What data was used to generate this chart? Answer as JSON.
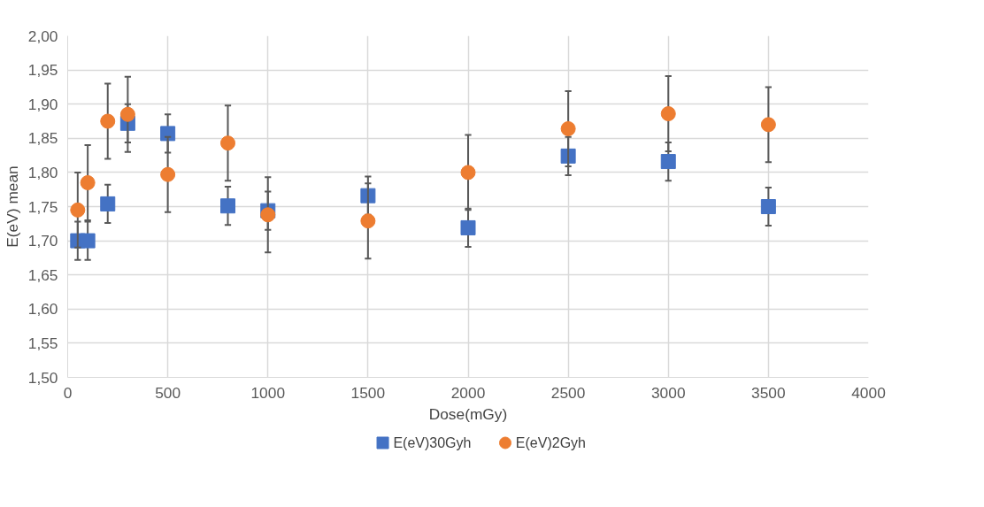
{
  "chart_data": {
    "type": "scatter",
    "xlabel": "Dose(mGy)",
    "ylabel": "E(eV) mean",
    "x": [
      50,
      100,
      200,
      300,
      500,
      800,
      1000,
      1500,
      2000,
      2500,
      3000,
      3500
    ],
    "series": [
      {
        "name": "E(eV)30Gyh",
        "color": "#4472c4",
        "marker": "square",
        "values": [
          1.7,
          1.7,
          1.754,
          1.872,
          1.857,
          1.751,
          1.744,
          1.766,
          1.719,
          1.824,
          1.816,
          1.75
        ],
        "errors": [
          0.028,
          0.028,
          0.028,
          0.028,
          0.028,
          0.028,
          0.028,
          0.028,
          0.028,
          0.028,
          0.028,
          0.028
        ]
      },
      {
        "name": "E(eV)2Gyh",
        "color": "#ed7d31",
        "marker": "circle",
        "values": [
          1.745,
          1.785,
          1.875,
          1.885,
          1.797,
          1.843,
          1.738,
          1.729,
          1.8,
          1.864,
          1.886,
          1.87
        ],
        "errors": [
          0.055,
          0.055,
          0.055,
          0.055,
          0.055,
          0.055,
          0.055,
          0.055,
          0.055,
          0.055,
          0.055,
          0.055
        ]
      }
    ],
    "xlim": [
      0,
      4000
    ],
    "xticks": [
      0,
      500,
      1000,
      1500,
      2000,
      2500,
      3000,
      3500,
      4000
    ],
    "ylim": [
      1.5,
      2.0
    ],
    "yticks": [
      {
        "value": 1.5,
        "label": "1,50"
      },
      {
        "value": 1.55,
        "label": "1,55"
      },
      {
        "value": 1.6,
        "label": "1,60"
      },
      {
        "value": 1.65,
        "label": "1,65"
      },
      {
        "value": 1.7,
        "label": "1,70"
      },
      {
        "value": 1.75,
        "label": "1,75"
      },
      {
        "value": 1.8,
        "label": "1,80"
      },
      {
        "value": 1.85,
        "label": "1,85"
      },
      {
        "value": 1.9,
        "label": "1,90"
      },
      {
        "value": 1.95,
        "label": "1,95"
      },
      {
        "value": 2.0,
        "label": "2,00"
      }
    ],
    "grid": true,
    "legend": "bottom"
  }
}
